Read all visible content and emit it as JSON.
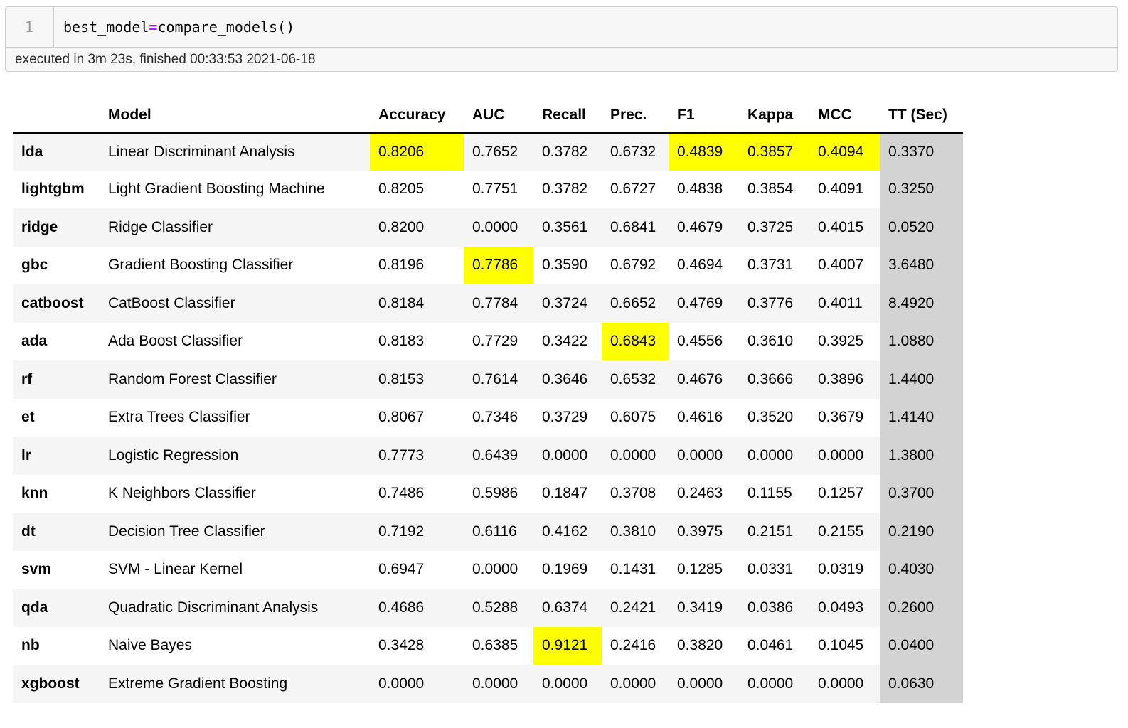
{
  "code_cell": {
    "line_number": "1",
    "code_before": "best_model",
    "code_op": "=",
    "code_after": "compare_models()",
    "timing": "executed in 3m 23s, finished 00:33:53 2021-06-18"
  },
  "table": {
    "index_header": "",
    "columns": [
      "Model",
      "Accuracy",
      "AUC",
      "Recall",
      "Prec.",
      "F1",
      "Kappa",
      "MCC",
      "TT (Sec)"
    ],
    "rows": [
      {
        "id": "lda",
        "model": "Linear Discriminant Analysis",
        "values": [
          "0.8206",
          "0.7652",
          "0.3782",
          "0.6732",
          "0.4839",
          "0.3857",
          "0.4094",
          "0.3370"
        ],
        "highlight": [
          0,
          4,
          5,
          6
        ]
      },
      {
        "id": "lightgbm",
        "model": "Light Gradient Boosting Machine",
        "values": [
          "0.8205",
          "0.7751",
          "0.3782",
          "0.6727",
          "0.4838",
          "0.3854",
          "0.4091",
          "0.3250"
        ],
        "highlight": []
      },
      {
        "id": "ridge",
        "model": "Ridge Classifier",
        "values": [
          "0.8200",
          "0.0000",
          "0.3561",
          "0.6841",
          "0.4679",
          "0.3725",
          "0.4015",
          "0.0520"
        ],
        "highlight": []
      },
      {
        "id": "gbc",
        "model": "Gradient Boosting Classifier",
        "values": [
          "0.8196",
          "0.7786",
          "0.3590",
          "0.6792",
          "0.4694",
          "0.3731",
          "0.4007",
          "3.6480"
        ],
        "highlight": [
          1
        ]
      },
      {
        "id": "catboost",
        "model": "CatBoost Classifier",
        "values": [
          "0.8184",
          "0.7784",
          "0.3724",
          "0.6652",
          "0.4769",
          "0.3776",
          "0.4011",
          "8.4920"
        ],
        "highlight": []
      },
      {
        "id": "ada",
        "model": "Ada Boost Classifier",
        "values": [
          "0.8183",
          "0.7729",
          "0.3422",
          "0.6843",
          "0.4556",
          "0.3610",
          "0.3925",
          "1.0880"
        ],
        "highlight": [
          3
        ]
      },
      {
        "id": "rf",
        "model": "Random Forest Classifier",
        "values": [
          "0.8153",
          "0.7614",
          "0.3646",
          "0.6532",
          "0.4676",
          "0.3666",
          "0.3896",
          "1.4400"
        ],
        "highlight": []
      },
      {
        "id": "et",
        "model": "Extra Trees Classifier",
        "values": [
          "0.8067",
          "0.7346",
          "0.3729",
          "0.6075",
          "0.4616",
          "0.3520",
          "0.3679",
          "1.4140"
        ],
        "highlight": []
      },
      {
        "id": "lr",
        "model": "Logistic Regression",
        "values": [
          "0.7773",
          "0.6439",
          "0.0000",
          "0.0000",
          "0.0000",
          "0.0000",
          "0.0000",
          "1.3800"
        ],
        "highlight": []
      },
      {
        "id": "knn",
        "model": "K Neighbors Classifier",
        "values": [
          "0.7486",
          "0.5986",
          "0.1847",
          "0.3708",
          "0.2463",
          "0.1155",
          "0.1257",
          "0.3700"
        ],
        "highlight": []
      },
      {
        "id": "dt",
        "model": "Decision Tree Classifier",
        "values": [
          "0.7192",
          "0.6116",
          "0.4162",
          "0.3810",
          "0.3975",
          "0.2151",
          "0.2155",
          "0.2190"
        ],
        "highlight": []
      },
      {
        "id": "svm",
        "model": "SVM - Linear Kernel",
        "values": [
          "0.6947",
          "0.0000",
          "0.1969",
          "0.1431",
          "0.1285",
          "0.0331",
          "0.0319",
          "0.4030"
        ],
        "highlight": []
      },
      {
        "id": "qda",
        "model": "Quadratic Discriminant Analysis",
        "values": [
          "0.4686",
          "0.5288",
          "0.6374",
          "0.2421",
          "0.3419",
          "0.0386",
          "0.0493",
          "0.2600"
        ],
        "highlight": []
      },
      {
        "id": "nb",
        "model": "Naive Bayes",
        "values": [
          "0.3428",
          "0.6385",
          "0.9121",
          "0.2416",
          "0.3820",
          "0.0461",
          "0.1045",
          "0.0400"
        ],
        "highlight": [
          2
        ]
      },
      {
        "id": "xgboost",
        "model": "Extreme Gradient Boosting",
        "values": [
          "0.0000",
          "0.0000",
          "0.0000",
          "0.0000",
          "0.0000",
          "0.0000",
          "0.0000",
          "0.0630"
        ],
        "highlight": []
      }
    ]
  },
  "colors": {
    "highlight_yellow": "#ffff00",
    "tt_column_gray": "#d3d3d3",
    "row_stripe": "#f5f5f5",
    "operator_purple": "#aa22ff",
    "cell_background": "#f7f7f7",
    "cell_border": "#cfcfcf"
  }
}
